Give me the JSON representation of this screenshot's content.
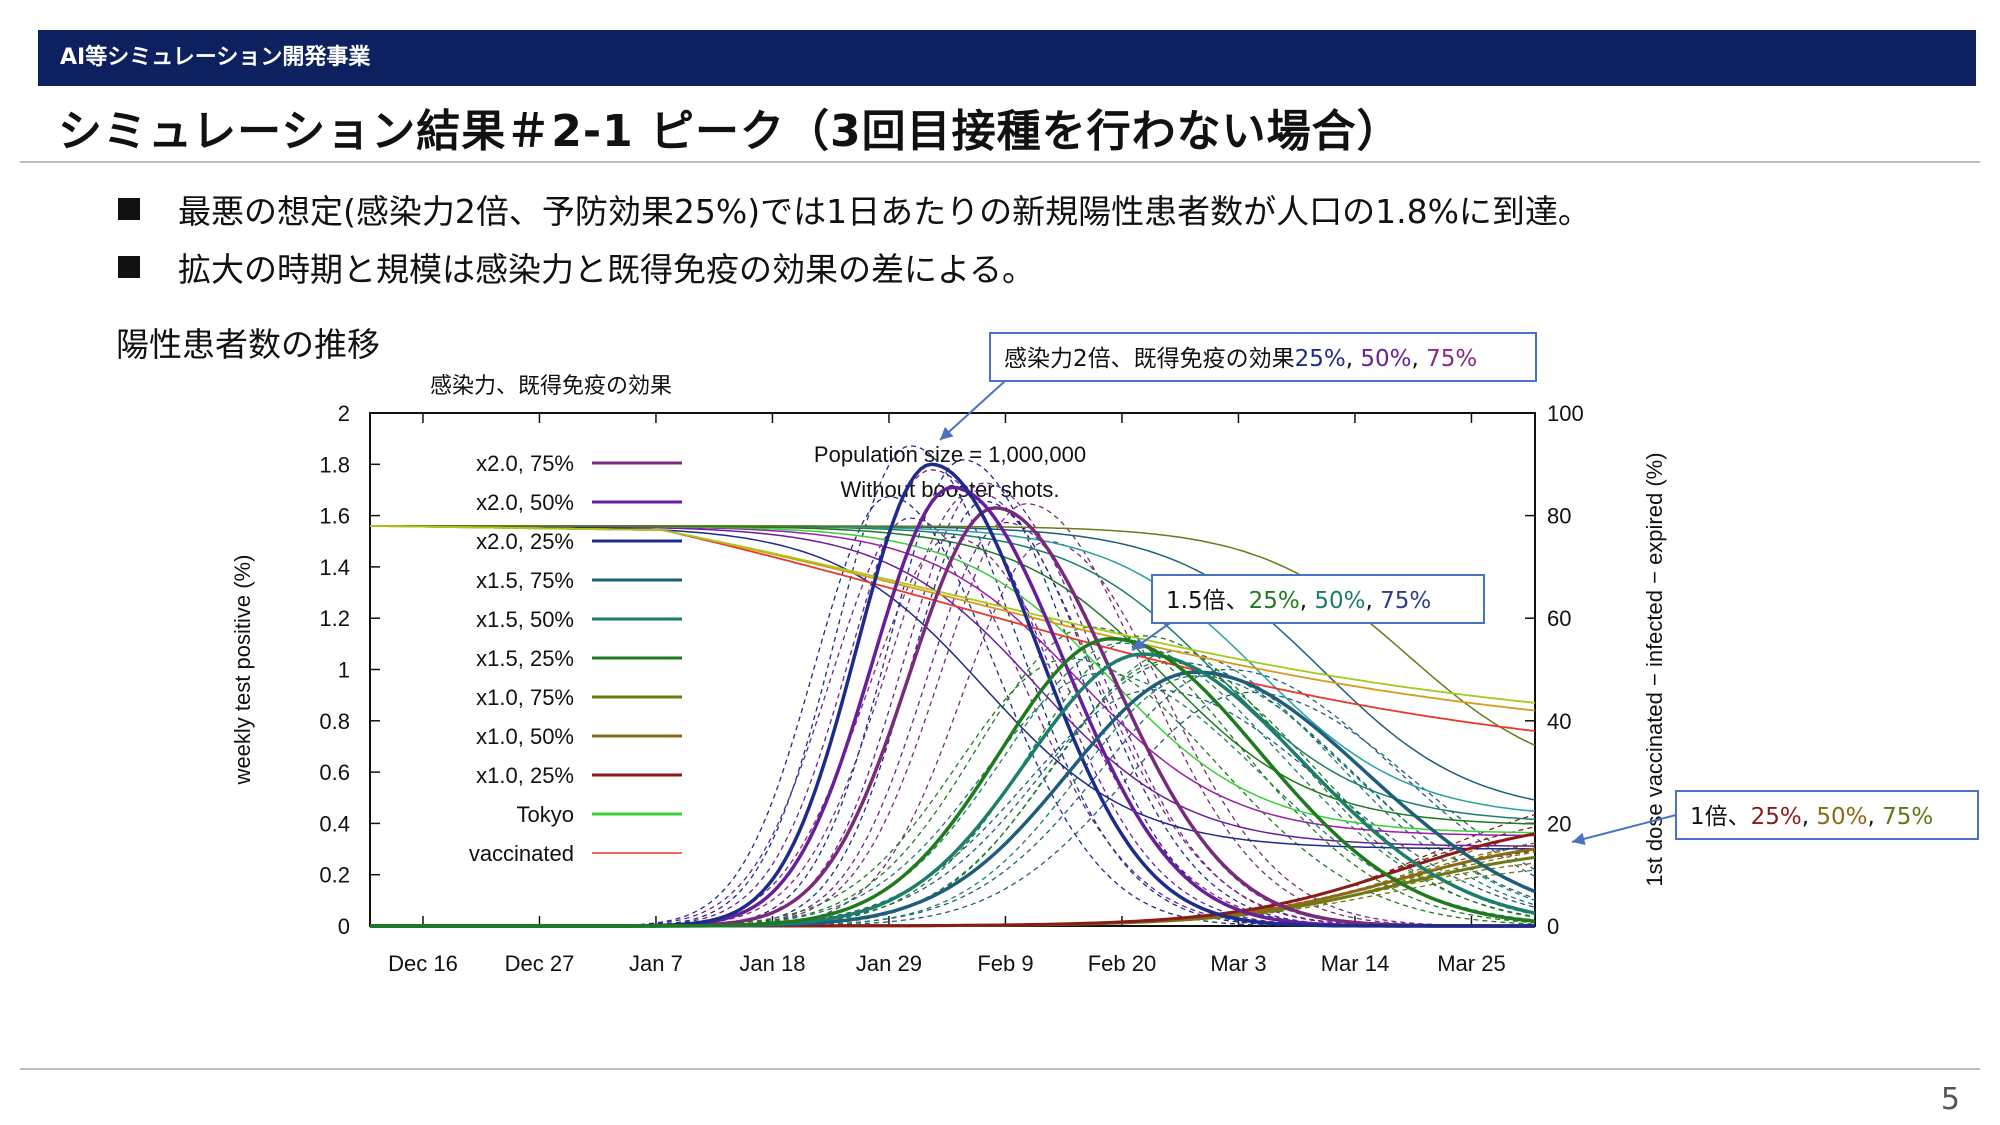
{
  "header": {
    "section": "AI等シミュレーション開発事業",
    "title": "シミュレーション結果＃2-1 ピーク（3回目接種を行わない場合）"
  },
  "bullets": [
    "最悪の想定(感染力2倍、予防効果25%)では1日あたりの新規陽性患者数が人口の1.8%に到達。",
    "拡大の時期と規模は感染力と既得免疫の効果の差による。"
  ],
  "section_label": "陽性患者数の推移",
  "page_number": "5",
  "colors": {
    "header_bar": "#0d2160",
    "callout_border": "#4a72c4"
  },
  "callouts": {
    "c2x": {
      "prefix": "感染力2倍、既得免疫の効果",
      "parts": [
        {
          "t": "25%",
          "c": "#1d2b8a"
        },
        {
          "t": ", ",
          "c": "#111"
        },
        {
          "t": "50%",
          "c": "#6a1f9a"
        },
        {
          "t": ", ",
          "c": "#111"
        },
        {
          "t": "75%",
          "c": "#8a2a80"
        }
      ]
    },
    "c15x": {
      "prefix": "1.5倍、",
      "parts": [
        {
          "t": "25%",
          "c": "#1f7a1f"
        },
        {
          "t": ", ",
          "c": "#111"
        },
        {
          "t": "50%",
          "c": "#1b7d6a"
        },
        {
          "t": ", ",
          "c": "#111"
        },
        {
          "t": "75%",
          "c": "#2d3e8c"
        }
      ]
    },
    "c1x": {
      "prefix": "1倍、",
      "parts": [
        {
          "t": "25%",
          "c": "#8b1a1a"
        },
        {
          "t": ", ",
          "c": "#111"
        },
        {
          "t": "50%",
          "c": "#8a6a12"
        },
        {
          "t": ", ",
          "c": "#111"
        },
        {
          "t": "75%",
          "c": "#5c7a12"
        }
      ]
    }
  },
  "chart_data": {
    "type": "line",
    "legend_title": "感染力、既得免疫の効果",
    "ylabel": "weekly test positive (%)",
    "y2label": "1st dose vaccinated − infected − expired (%)",
    "annotation": [
      "Population size = 1,000,000",
      "Without booster shots."
    ],
    "ylim": [
      0,
      2
    ],
    "y2lim": [
      0,
      100
    ],
    "yticks": [
      "0",
      "0.2",
      "0.4",
      "0.6",
      "0.8",
      "1",
      "1.2",
      "1.4",
      "1.6",
      "1.8",
      "2"
    ],
    "y2ticks": [
      "0",
      "20",
      "40",
      "60",
      "80",
      "100"
    ],
    "xticks": [
      "Dec 16",
      "Dec 27",
      "Jan 7",
      "Jan 18",
      "Jan 29",
      "Feb 9",
      "Feb 20",
      "Mar 3",
      "Mar 14",
      "Mar 25"
    ],
    "x_start": "Dec 11",
    "x_end": "Mar 31",
    "legend_placement": "top-left",
    "series": [
      {
        "name": "x2.0, 75%",
        "color": "#7a2a7a",
        "peak": 1.63,
        "peak_day": "Feb 8",
        "rise_days": 8,
        "decay_days": 11
      },
      {
        "name": "x2.0, 50%",
        "color": "#6a1f9a",
        "peak": 1.71,
        "peak_day": "Feb 4",
        "rise_days": 7.5,
        "decay_days": 10.5
      },
      {
        "name": "x2.0, 25%",
        "color": "#1d2b8a",
        "peak": 1.8,
        "peak_day": "Feb 2",
        "rise_days": 7,
        "decay_days": 10
      },
      {
        "name": "x1.5, 75%",
        "color": "#1f5e7a",
        "peak": 0.99,
        "peak_day": "Feb 27",
        "rise_days": 12,
        "decay_days": 16
      },
      {
        "name": "x1.5, 50%",
        "color": "#1b7d6a",
        "peak": 1.06,
        "peak_day": "Feb 22",
        "rise_days": 11,
        "decay_days": 15
      },
      {
        "name": "x1.5, 25%",
        "color": "#1f7a1f",
        "peak": 1.12,
        "peak_day": "Feb 19",
        "rise_days": 10.5,
        "decay_days": 14
      },
      {
        "name": "x1.0, 75%",
        "color": "#6b7a12",
        "end_value": 0.32
      },
      {
        "name": "x1.0, 50%",
        "color": "#8a6a12",
        "end_value": 0.36
      },
      {
        "name": "x1.0, 25%",
        "color": "#8b1a1a",
        "end_value": 0.43
      },
      {
        "name": "Tokyo",
        "color": "#3ccf3c"
      },
      {
        "name": "vaccinated",
        "color": "#e63a2a",
        "axis": "right",
        "start": 78,
        "end": 38
      }
    ]
  }
}
